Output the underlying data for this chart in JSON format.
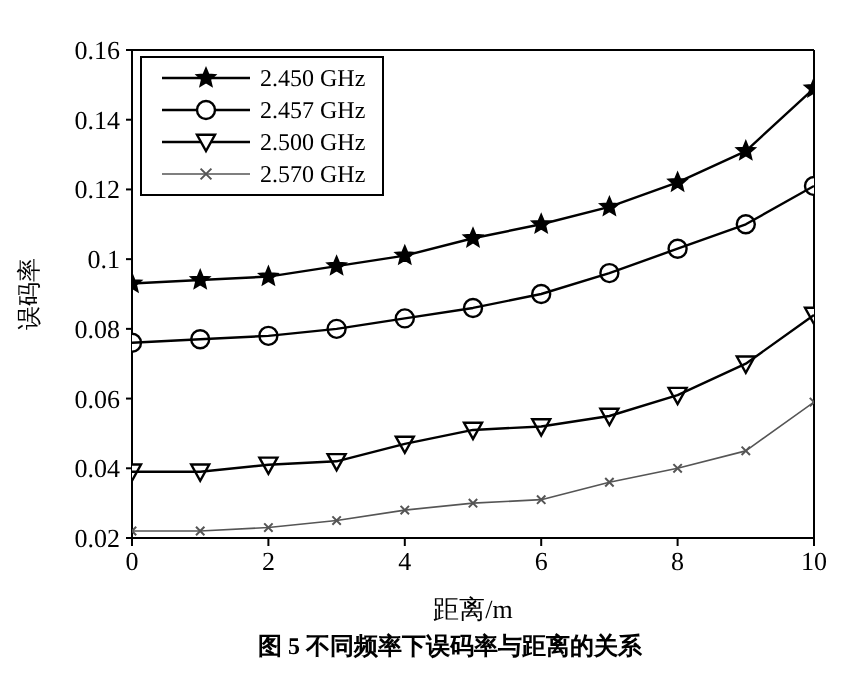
{
  "chart_data": {
    "type": "line",
    "title": "图 5 不同频率下误码率与距离的关系",
    "xlabel": "距离/m",
    "ylabel": "误码率",
    "x": [
      0,
      1,
      2,
      3,
      4,
      5,
      6,
      7,
      8,
      9,
      10
    ],
    "xlim": [
      0,
      10
    ],
    "xticks": [
      0,
      2,
      4,
      6,
      8,
      10
    ],
    "ylim": [
      0.02,
      0.16
    ],
    "yticks": [
      0.02,
      0.04,
      0.06,
      0.08,
      0.1,
      0.12,
      0.14,
      0.16
    ],
    "grid": false,
    "legend": "top left",
    "line_style": "solid",
    "series": [
      {
        "name": "2.450 GHz",
        "color": "#000000",
        "marker": "star",
        "values": [
          0.093,
          0.094,
          0.095,
          0.098,
          0.101,
          0.106,
          0.11,
          0.115,
          0.122,
          0.131,
          0.149
        ]
      },
      {
        "name": "2.457 GHz",
        "color": "#000000",
        "marker": "circle",
        "values": [
          0.076,
          0.077,
          0.078,
          0.08,
          0.083,
          0.086,
          0.09,
          0.096,
          0.103,
          0.11,
          0.121
        ]
      },
      {
        "name": "2.500 GHz",
        "color": "#000000",
        "marker": "triangle",
        "values": [
          0.039,
          0.039,
          0.041,
          0.042,
          0.047,
          0.051,
          0.052,
          0.055,
          0.061,
          0.07,
          0.084
        ]
      },
      {
        "name": "2.570 GHz",
        "color": "#555555",
        "marker": "cross",
        "values": [
          0.022,
          0.022,
          0.023,
          0.025,
          0.028,
          0.03,
          0.031,
          0.036,
          0.04,
          0.045,
          0.059
        ]
      }
    ]
  }
}
